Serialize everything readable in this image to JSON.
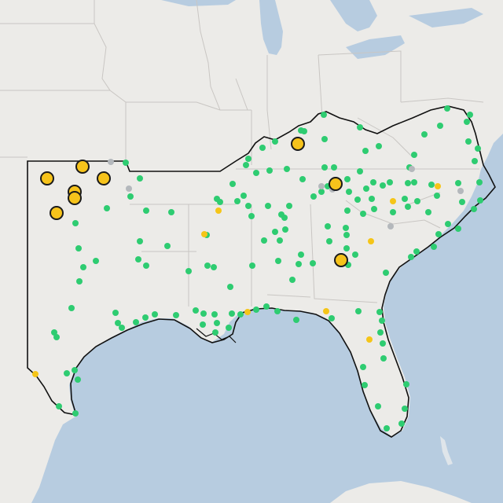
{
  "map": {
    "colors": {
      "land": "#ecebe8",
      "water": "#b7cce0",
      "state_border": "#c9c6c3",
      "region_outline": "#111111",
      "status_green": "#2ecc71",
      "status_yellow": "#f5c518",
      "status_gray": "#b4b8bc",
      "large_marker_fill": "#f6c31b",
      "large_marker_stroke": "#1a1a1a"
    },
    "legend": null,
    "marker_categories": [
      "green",
      "yellow",
      "gray",
      "large-yellow"
    ]
  },
  "markers": {
    "green": [
      [
        160,
        207
      ],
      [
        178,
        227
      ],
      [
        166,
        250
      ],
      [
        218,
        270
      ],
      [
        186,
        268
      ],
      [
        136,
        265
      ],
      [
        98,
        250
      ],
      [
        96,
        284
      ],
      [
        100,
        316
      ],
      [
        122,
        332
      ],
      [
        106,
        340
      ],
      [
        101,
        358
      ],
      [
        178,
        307
      ],
      [
        176,
        330
      ],
      [
        186,
        338
      ],
      [
        213,
        313
      ],
      [
        91,
        392
      ],
      [
        69,
        423
      ],
      [
        72,
        429
      ],
      [
        85,
        475
      ],
      [
        95,
        471
      ],
      [
        99,
        483
      ],
      [
        75,
        517
      ],
      [
        96,
        526
      ],
      [
        147,
        398
      ],
      [
        150,
        411
      ],
      [
        155,
        417
      ],
      [
        173,
        410
      ],
      [
        185,
        404
      ],
      [
        197,
        400
      ],
      [
        224,
        401
      ],
      [
        249,
        395
      ],
      [
        259,
        399
      ],
      [
        258,
        413
      ],
      [
        273,
        400
      ],
      [
        276,
        411
      ],
      [
        274,
        423
      ],
      [
        291,
        417
      ],
      [
        295,
        399
      ],
      [
        306,
        400
      ],
      [
        326,
        394
      ],
      [
        339,
        390
      ],
      [
        353,
        396
      ],
      [
        377,
        407
      ],
      [
        422,
        405
      ],
      [
        456,
        396
      ],
      [
        483,
        397
      ],
      [
        486,
        408
      ],
      [
        484,
        423
      ],
      [
        487,
        437
      ],
      [
        488,
        456
      ],
      [
        462,
        467
      ],
      [
        464,
        490
      ],
      [
        481,
        517
      ],
      [
        492,
        545
      ],
      [
        511,
        539
      ],
      [
        515,
        520
      ],
      [
        517,
        489
      ],
      [
        491,
        347
      ],
      [
        523,
        327
      ],
      [
        530,
        320
      ],
      [
        552,
        314
      ],
      [
        558,
        298
      ],
      [
        570,
        285
      ],
      [
        583,
        291
      ],
      [
        603,
        266
      ],
      [
        611,
        255
      ],
      [
        610,
        232
      ],
      [
        604,
        205
      ],
      [
        608,
        189
      ],
      [
        596,
        180
      ],
      [
        594,
        155
      ],
      [
        598,
        146
      ],
      [
        569,
        138
      ],
      [
        560,
        160
      ],
      [
        540,
        171
      ],
      [
        527,
        197
      ],
      [
        521,
        213
      ],
      [
        519,
        233
      ],
      [
        515,
        253
      ],
      [
        496,
        232
      ],
      [
        527,
        232
      ],
      [
        531,
        256
      ],
      [
        549,
        235
      ],
      [
        556,
        249
      ],
      [
        583,
        233
      ],
      [
        588,
        257
      ],
      [
        545,
        270
      ],
      [
        519,
        263
      ],
      [
        500,
        270
      ],
      [
        476,
        266
      ],
      [
        462,
        272
      ],
      [
        442,
        268
      ],
      [
        455,
        254
      ],
      [
        444,
        244
      ],
      [
        442,
        228
      ],
      [
        458,
        218
      ],
      [
        466,
        240
      ],
      [
        475,
        232
      ],
      [
        487,
        236
      ],
      [
        473,
        253
      ],
      [
        417,
        237
      ],
      [
        409,
        244
      ],
      [
        399,
        250
      ],
      [
        417,
        288
      ],
      [
        440,
        290
      ],
      [
        441,
        299
      ],
      [
        419,
        307
      ],
      [
        441,
        316
      ],
      [
        452,
        324
      ],
      [
        443,
        337
      ],
      [
        398,
        335
      ],
      [
        372,
        356
      ],
      [
        380,
        336
      ],
      [
        354,
        332
      ],
      [
        356,
        306
      ],
      [
        350,
        295
      ],
      [
        363,
        292
      ],
      [
        358,
        273
      ],
      [
        368,
        262
      ],
      [
        341,
        262
      ],
      [
        320,
        275
      ],
      [
        316,
        262
      ],
      [
        310,
        249
      ],
      [
        302,
        256
      ],
      [
        296,
        234
      ],
      [
        313,
        210
      ],
      [
        326,
        220
      ],
      [
        343,
        217
      ],
      [
        365,
        215
      ],
      [
        385,
        228
      ],
      [
        413,
        213
      ],
      [
        425,
        213
      ],
      [
        413,
        177
      ],
      [
        412,
        146
      ],
      [
        383,
        166
      ],
      [
        350,
        180
      ],
      [
        334,
        188
      ],
      [
        316,
        202
      ],
      [
        280,
        257
      ],
      [
        264,
        338
      ],
      [
        272,
        340
      ],
      [
        321,
        338
      ],
      [
        336,
        306
      ],
      [
        383,
        324
      ],
      [
        465,
        192
      ],
      [
        458,
        162
      ],
      [
        482,
        186
      ],
      [
        276,
        253
      ],
      [
        263,
        299
      ],
      [
        240,
        345
      ],
      [
        362,
        277
      ],
      [
        293,
        365
      ],
      [
        387,
        167
      ]
    ],
    "yellow": [
      [
        45,
        476
      ],
      [
        260,
        298
      ],
      [
        278,
        268
      ],
      [
        315,
        397
      ],
      [
        415,
        396
      ],
      [
        470,
        432
      ],
      [
        472,
        307
      ],
      [
        500,
        256
      ],
      [
        557,
        237
      ]
    ],
    "gray": [
      [
        141,
        206
      ],
      [
        164,
        240
      ],
      [
        497,
        288
      ],
      [
        586,
        243
      ],
      [
        524,
        215
      ],
      [
        423,
        241
      ],
      [
        409,
        237
      ]
    ],
    "large_yellow": [
      [
        60,
        227
      ],
      [
        105,
        212
      ],
      [
        132,
        227
      ],
      [
        95,
        244
      ],
      [
        95,
        252
      ],
      [
        72,
        271
      ],
      [
        379,
        183
      ],
      [
        427,
        234
      ],
      [
        434,
        331
      ]
    ]
  }
}
